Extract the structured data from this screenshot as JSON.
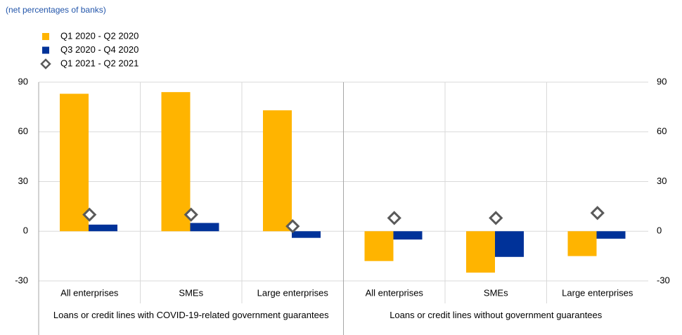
{
  "chart_data": {
    "type": "bar",
    "subtitle": "(net percentages of banks)",
    "categories": [
      "All enterprises",
      "SMEs",
      "Large enterprises",
      "All enterprises",
      "SMEs",
      "Large enterprises"
    ],
    "group_labels": [
      "Loans or credit lines with COVID-19-related government guarantees",
      "Loans or credit lines without government guarantees"
    ],
    "series": [
      {
        "name": "Q1 2020 - Q2 2020",
        "color": "#ffb400",
        "type": "bar",
        "values": [
          83,
          84,
          73,
          -18,
          -25,
          -15
        ]
      },
      {
        "name": "Q3 2020 - Q4 2020",
        "color": "#003299",
        "type": "bar",
        "values": [
          4,
          5,
          -4,
          -5,
          -15.5,
          -4.5
        ]
      },
      {
        "name": "Q1 2021 - Q2 2021",
        "color": "#5a5a5a",
        "type": "diamond",
        "values": [
          10,
          10,
          3,
          8,
          8,
          11
        ]
      }
    ],
    "ylim": [
      -30,
      90
    ],
    "yticks": [
      -30,
      0,
      30,
      60,
      90
    ],
    "y2lim": [
      -30,
      90
    ],
    "y2ticks": [
      -30,
      0,
      30,
      60,
      90
    ],
    "grid": true
  }
}
